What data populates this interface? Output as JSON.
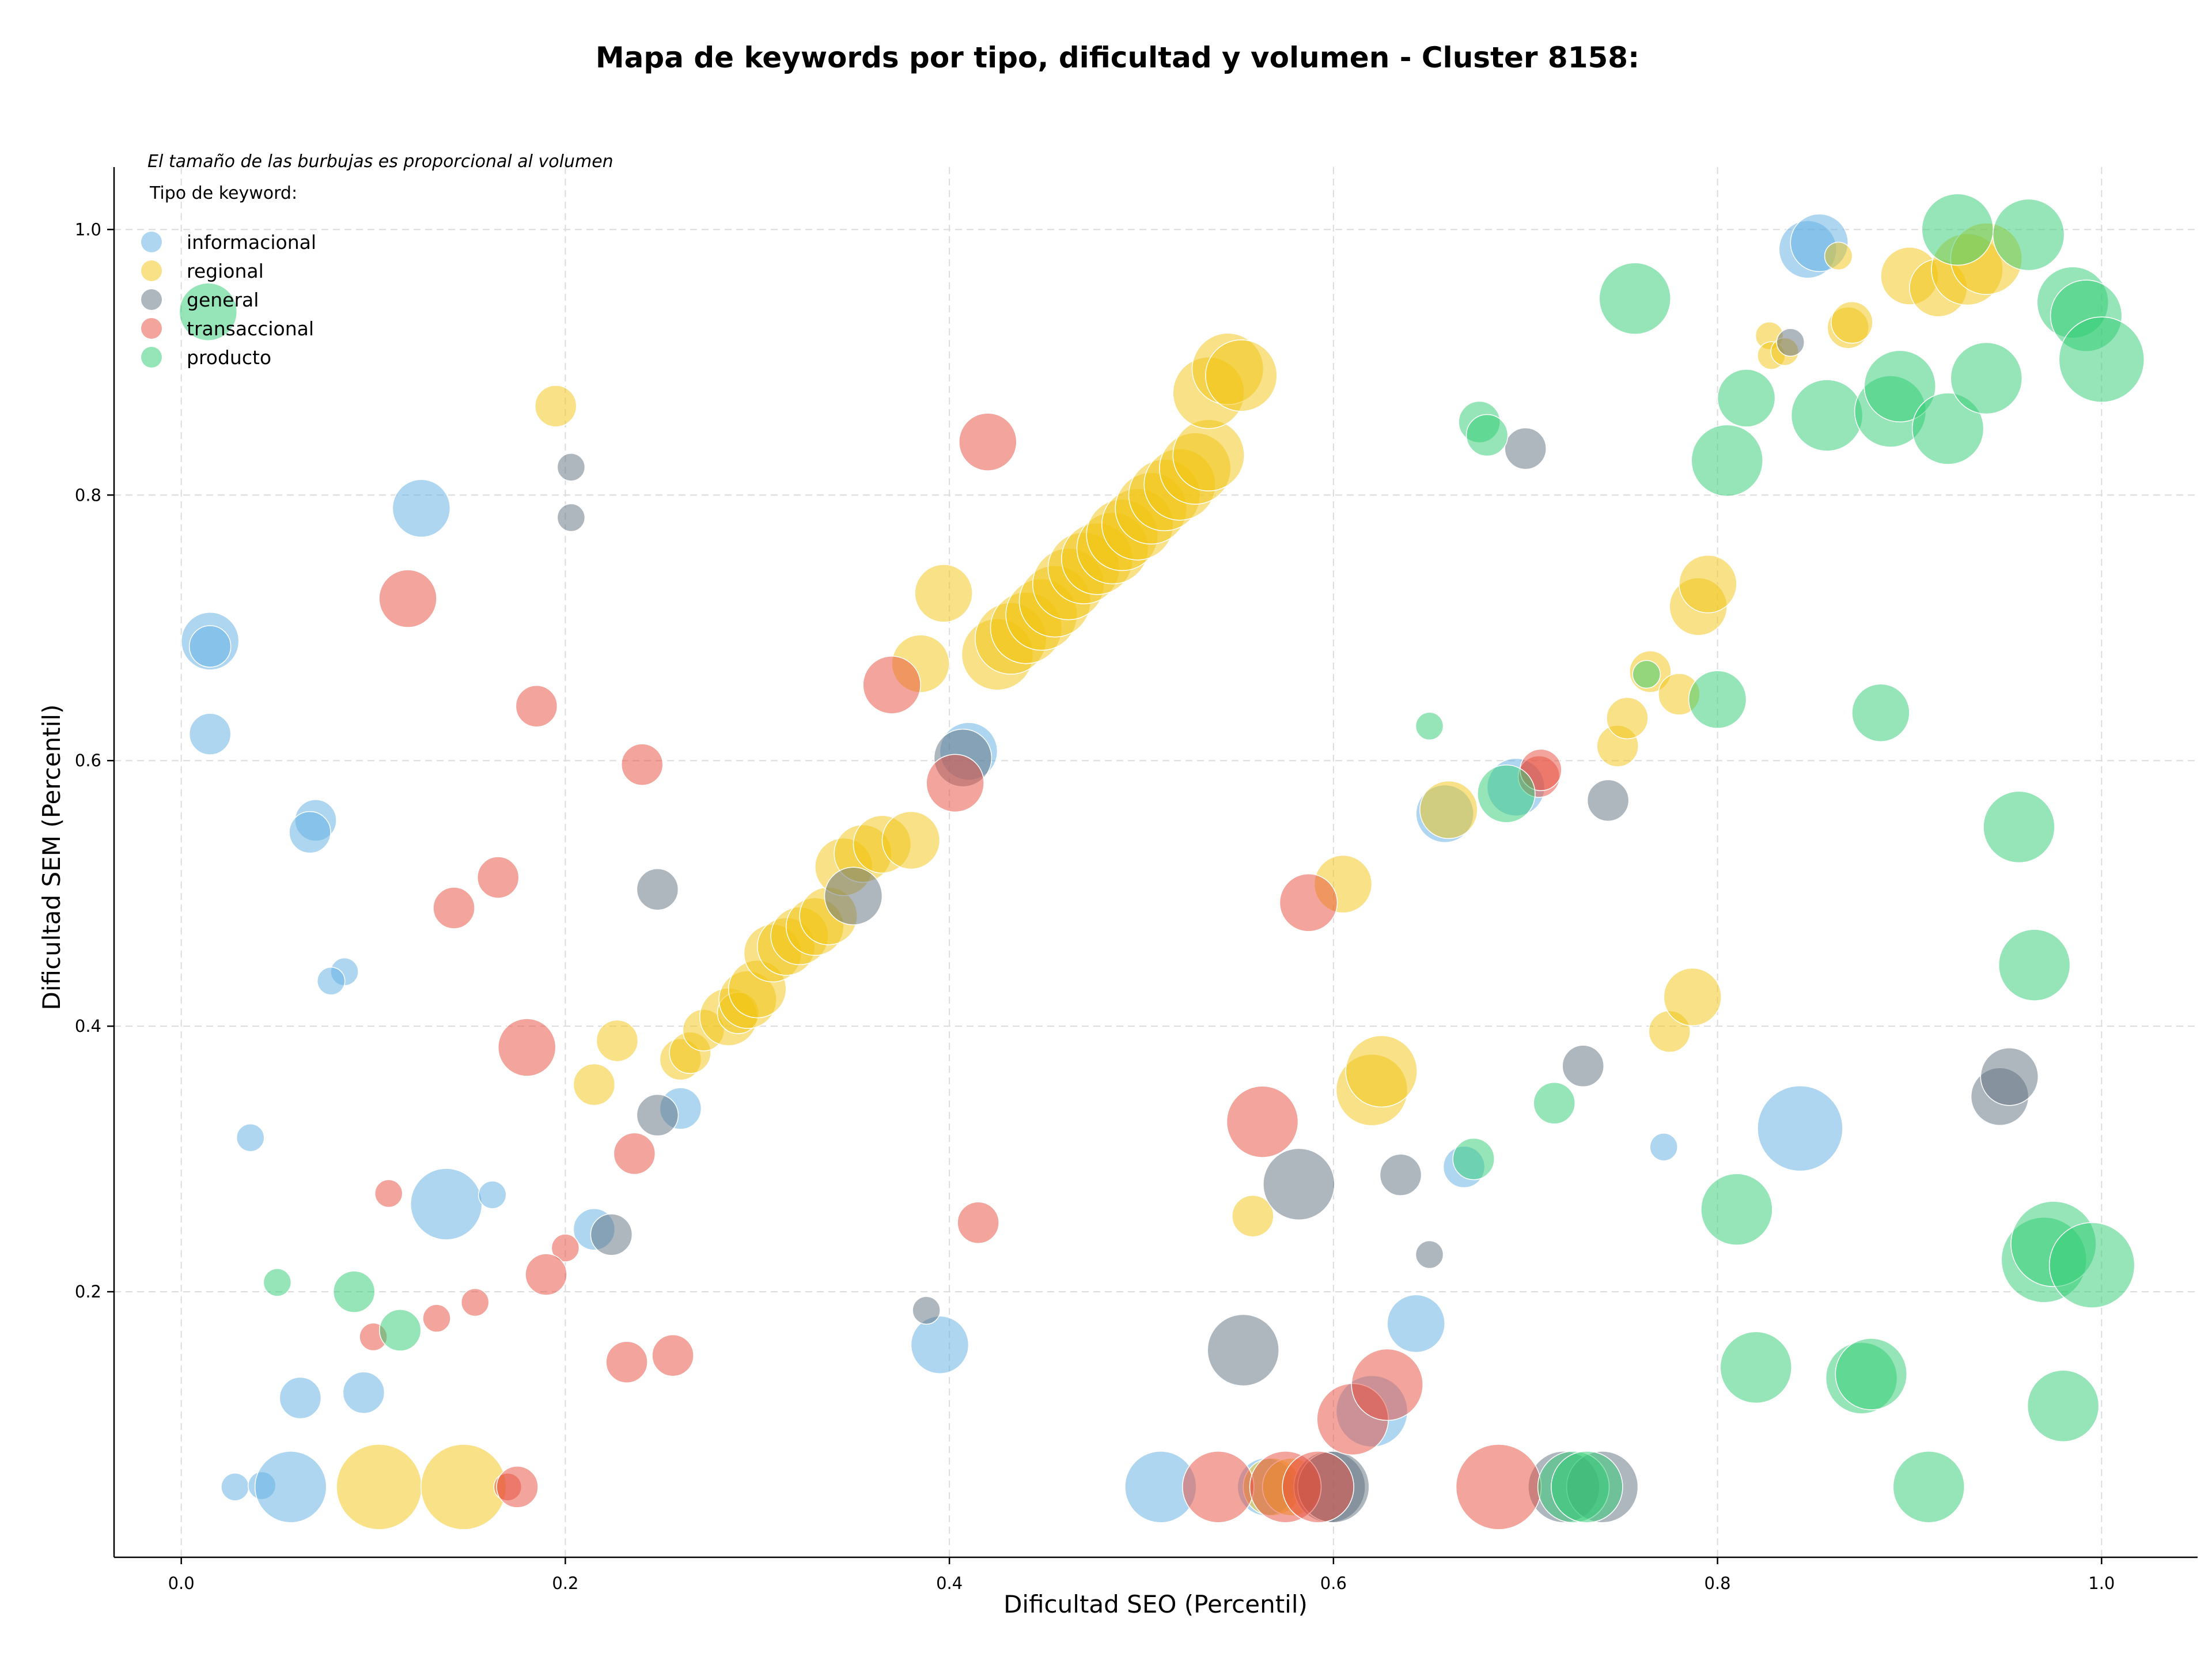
{
  "chart_data": {
    "type": "scatter",
    "title": "Mapa de keywords por tipo, dificultad y volumen - Cluster 8158:",
    "xlabel": "Dificultad SEO (Percentil)",
    "ylabel": "Dificultad SEM (Percentil)",
    "note": "El tamaño de las burbujas es proporcional al volumen",
    "legend_title": "Tipo de keyword:",
    "legend_position": "top-left",
    "xlim": [
      -0.035,
      1.05
    ],
    "ylim": [
      0.0,
      1.047
    ],
    "x_ticks": [
      "0.0",
      "0.2",
      "0.4",
      "0.6",
      "0.8",
      "1.0"
    ],
    "y_ticks": [
      "0.2",
      "0.4",
      "0.6",
      "0.8",
      "1.0"
    ],
    "grid": true,
    "series": [
      {
        "name": "informacional",
        "color": "#5DADE2",
        "points": [
          [
            0.015,
            0.69,
            3
          ],
          [
            0.015,
            0.686,
            2
          ],
          [
            0.015,
            0.62,
            2
          ],
          [
            0.125,
            0.79,
            3
          ],
          [
            0.07,
            0.555,
            2
          ],
          [
            0.067,
            0.546,
            2
          ],
          [
            0.085,
            0.441,
            1
          ],
          [
            0.078,
            0.434,
            1
          ],
          [
            0.036,
            0.316,
            1
          ],
          [
            0.138,
            0.266,
            4
          ],
          [
            0.162,
            0.273,
            1
          ],
          [
            0.215,
            0.247,
            2
          ],
          [
            0.26,
            0.338,
            2
          ],
          [
            0.062,
            0.12,
            2
          ],
          [
            0.095,
            0.124,
            2
          ],
          [
            0.028,
            0.053,
            1
          ],
          [
            0.042,
            0.054,
            1
          ],
          [
            0.057,
            0.053,
            4
          ],
          [
            0.395,
            0.16,
            3
          ],
          [
            0.41,
            0.607,
            3
          ],
          [
            0.51,
            0.053,
            4
          ],
          [
            0.565,
            0.053,
            3
          ],
          [
            0.62,
            0.11,
            4
          ],
          [
            0.643,
            0.176,
            3
          ],
          [
            0.658,
            0.56,
            3
          ],
          [
            0.668,
            0.294,
            2
          ],
          [
            0.695,
            0.58,
            3
          ],
          [
            0.772,
            0.309,
            1
          ],
          [
            0.843,
            0.323,
            5
          ],
          [
            0.847,
            0.985,
            3
          ],
          [
            0.853,
            0.99,
            3
          ]
        ]
      },
      {
        "name": "regional",
        "color": "#F1C40F",
        "points": [
          [
            0.195,
            0.867,
            2
          ],
          [
            0.215,
            0.356,
            2
          ],
          [
            0.227,
            0.389,
            2
          ],
          [
            0.26,
            0.375,
            2
          ],
          [
            0.265,
            0.38,
            2
          ],
          [
            0.272,
            0.397,
            2
          ],
          [
            0.285,
            0.407,
            3
          ],
          [
            0.29,
            0.41,
            2
          ],
          [
            0.295,
            0.42,
            3
          ],
          [
            0.3,
            0.428,
            3
          ],
          [
            0.308,
            0.455,
            3
          ],
          [
            0.315,
            0.46,
            3
          ],
          [
            0.322,
            0.468,
            3
          ],
          [
            0.33,
            0.475,
            3
          ],
          [
            0.337,
            0.483,
            3
          ],
          [
            0.345,
            0.52,
            3
          ],
          [
            0.355,
            0.53,
            3
          ],
          [
            0.365,
            0.537,
            3
          ],
          [
            0.38,
            0.54,
            3
          ],
          [
            0.385,
            0.673,
            3
          ],
          [
            0.397,
            0.726,
            3
          ],
          [
            0.425,
            0.68,
            4
          ],
          [
            0.432,
            0.692,
            4
          ],
          [
            0.44,
            0.7,
            4
          ],
          [
            0.448,
            0.71,
            4
          ],
          [
            0.455,
            0.72,
            4
          ],
          [
            0.462,
            0.733,
            4
          ],
          [
            0.47,
            0.745,
            4
          ],
          [
            0.477,
            0.752,
            4
          ],
          [
            0.485,
            0.76,
            4
          ],
          [
            0.49,
            0.77,
            4
          ],
          [
            0.498,
            0.778,
            4
          ],
          [
            0.505,
            0.79,
            4
          ],
          [
            0.512,
            0.8,
            4
          ],
          [
            0.52,
            0.808,
            4
          ],
          [
            0.528,
            0.82,
            4
          ],
          [
            0.535,
            0.83,
            4
          ],
          [
            0.535,
            0.877,
            4
          ],
          [
            0.545,
            0.895,
            4
          ],
          [
            0.552,
            0.89,
            4
          ],
          [
            0.103,
            0.053,
            5
          ],
          [
            0.147,
            0.053,
            5
          ],
          [
            0.558,
            0.257,
            2
          ],
          [
            0.568,
            0.053,
            3
          ],
          [
            0.578,
            0.053,
            3
          ],
          [
            0.605,
            0.507,
            3
          ],
          [
            0.62,
            0.352,
            4
          ],
          [
            0.625,
            0.366,
            4
          ],
          [
            0.66,
            0.563,
            3
          ],
          [
            0.748,
            0.611,
            2
          ],
          [
            0.753,
            0.632,
            2
          ],
          [
            0.765,
            0.667,
            2
          ],
          [
            0.775,
            0.396,
            2
          ],
          [
            0.78,
            0.65,
            2
          ],
          [
            0.787,
            0.422,
            3
          ],
          [
            0.79,
            0.716,
            3
          ],
          [
            0.795,
            0.733,
            3
          ],
          [
            0.827,
            0.92,
            1
          ],
          [
            0.828,
            0.905,
            1
          ],
          [
            0.835,
            0.908,
            1
          ],
          [
            0.863,
            0.98,
            1
          ],
          [
            0.868,
            0.926,
            2
          ],
          [
            0.87,
            0.93,
            2
          ],
          [
            0.9,
            0.965,
            3
          ],
          [
            0.915,
            0.956,
            3
          ],
          [
            0.93,
            0.97,
            4
          ],
          [
            0.94,
            0.978,
            4
          ]
        ]
      },
      {
        "name": "general",
        "color": "#5D6D7E",
        "points": [
          [
            0.203,
            0.821,
            1
          ],
          [
            0.203,
            0.783,
            1
          ],
          [
            0.248,
            0.503,
            2
          ],
          [
            0.248,
            0.333,
            2
          ],
          [
            0.224,
            0.243,
            2
          ],
          [
            0.35,
            0.498,
            3
          ],
          [
            0.388,
            0.186,
            1
          ],
          [
            0.407,
            0.602,
            3
          ],
          [
            0.553,
            0.156,
            4
          ],
          [
            0.582,
            0.281,
            4
          ],
          [
            0.598,
            0.053,
            4
          ],
          [
            0.6,
            0.053,
            4
          ],
          [
            0.635,
            0.288,
            2
          ],
          [
            0.65,
            0.228,
            1
          ],
          [
            0.7,
            0.835,
            2
          ],
          [
            0.72,
            0.053,
            4
          ],
          [
            0.74,
            0.053,
            4
          ],
          [
            0.73,
            0.37,
            2
          ],
          [
            0.743,
            0.57,
            2
          ],
          [
            0.838,
            0.915,
            1
          ],
          [
            0.947,
            0.347,
            3
          ],
          [
            0.952,
            0.362,
            3
          ]
        ]
      },
      {
        "name": "transaccional",
        "color": "#E74C3C",
        "points": [
          [
            0.118,
            0.722,
            3
          ],
          [
            0.185,
            0.641,
            2
          ],
          [
            0.165,
            0.512,
            2
          ],
          [
            0.142,
            0.489,
            2
          ],
          [
            0.18,
            0.384,
            3
          ],
          [
            0.24,
            0.597,
            2
          ],
          [
            0.236,
            0.304,
            2
          ],
          [
            0.108,
            0.274,
            1
          ],
          [
            0.2,
            0.233,
            1
          ],
          [
            0.19,
            0.213,
            2
          ],
          [
            0.153,
            0.192,
            1
          ],
          [
            0.133,
            0.18,
            1
          ],
          [
            0.1,
            0.166,
            1
          ],
          [
            0.232,
            0.147,
            2
          ],
          [
            0.256,
            0.152,
            2
          ],
          [
            0.17,
            0.053,
            1
          ],
          [
            0.175,
            0.053,
            2
          ],
          [
            0.37,
            0.657,
            3
          ],
          [
            0.403,
            0.583,
            3
          ],
          [
            0.42,
            0.84,
            3
          ],
          [
            0.415,
            0.252,
            2
          ],
          [
            0.54,
            0.053,
            4
          ],
          [
            0.563,
            0.328,
            4
          ],
          [
            0.575,
            0.053,
            4
          ],
          [
            0.587,
            0.493,
            3
          ],
          [
            0.592,
            0.053,
            4
          ],
          [
            0.61,
            0.104,
            4
          ],
          [
            0.628,
            0.13,
            4
          ],
          [
            0.686,
            0.053,
            5
          ],
          [
            0.707,
            0.588,
            2
          ],
          [
            0.708,
            0.593,
            2
          ]
        ]
      },
      {
        "name": "producto",
        "color": "#2ECC71",
        "points": [
          [
            0.014,
            0.938,
            3
          ],
          [
            0.05,
            0.207,
            1
          ],
          [
            0.09,
            0.2,
            2
          ],
          [
            0.114,
            0.171,
            2
          ],
          [
            0.65,
            0.626,
            1
          ],
          [
            0.673,
            0.3,
            2
          ],
          [
            0.676,
            0.855,
            2
          ],
          [
            0.68,
            0.845,
            2
          ],
          [
            0.69,
            0.575,
            3
          ],
          [
            0.715,
            0.342,
            2
          ],
          [
            0.725,
            0.053,
            4
          ],
          [
            0.732,
            0.053,
            4
          ],
          [
            0.757,
            0.948,
            4
          ],
          [
            0.763,
            0.665,
            1
          ],
          [
            0.8,
            0.646,
            3
          ],
          [
            0.805,
            0.826,
            4
          ],
          [
            0.81,
            0.262,
            4
          ],
          [
            0.815,
            0.873,
            3
          ],
          [
            0.82,
            0.143,
            4
          ],
          [
            0.857,
            0.86,
            4
          ],
          [
            0.875,
            0.135,
            4
          ],
          [
            0.88,
            0.138,
            4
          ],
          [
            0.885,
            0.636,
            3
          ],
          [
            0.89,
            0.863,
            4
          ],
          [
            0.895,
            0.882,
            4
          ],
          [
            0.91,
            0.053,
            4
          ],
          [
            0.92,
            0.85,
            4
          ],
          [
            0.925,
            1.0,
            4
          ],
          [
            0.94,
            0.888,
            4
          ],
          [
            0.957,
            0.55,
            4
          ],
          [
            0.962,
            0.996,
            4
          ],
          [
            0.965,
            0.446,
            4
          ],
          [
            0.97,
            0.224,
            5
          ],
          [
            0.975,
            0.236,
            5
          ],
          [
            0.98,
            0.114,
            4
          ],
          [
            0.985,
            0.945,
            4
          ],
          [
            0.992,
            0.935,
            4
          ],
          [
            0.995,
            0.22,
            5
          ],
          [
            1.0,
            0.902,
            5
          ]
        ]
      }
    ]
  }
}
